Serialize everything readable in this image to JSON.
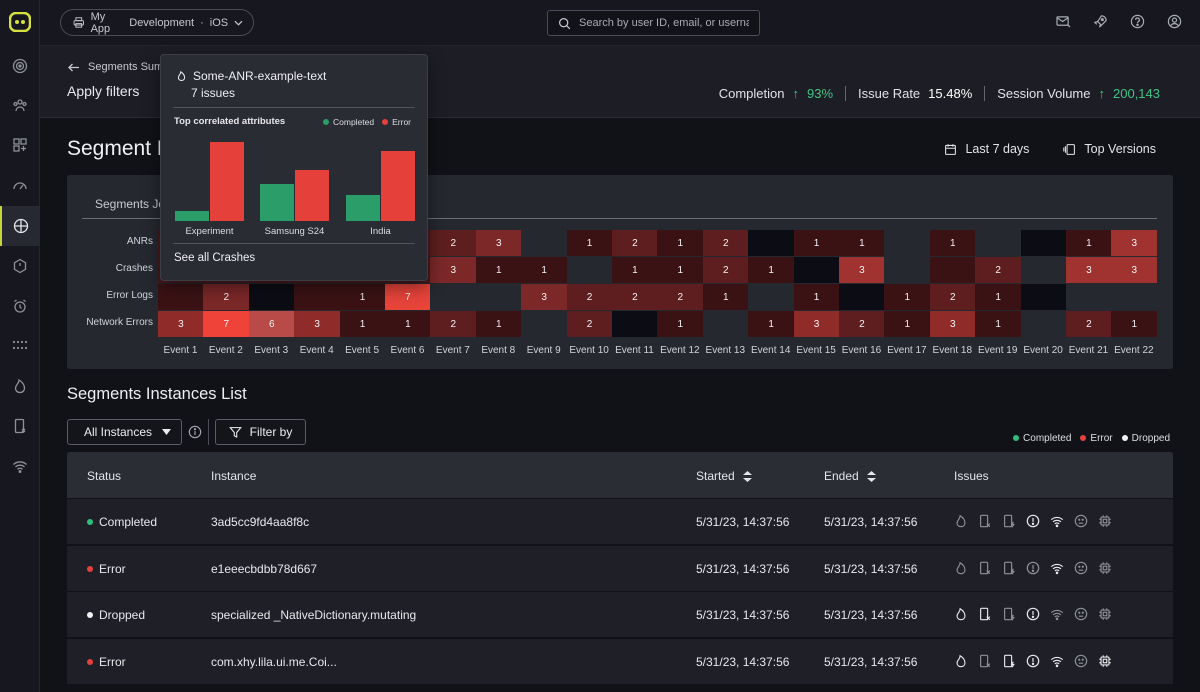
{
  "topbar": {
    "app_name": "My App",
    "environment": "Development",
    "platform": "iOS",
    "separator": "·",
    "search_placeholder": "Search by user ID, email, or username"
  },
  "subheader": {
    "back_label": "Segments Summ",
    "title": "Apply filters",
    "metrics": [
      {
        "label": "Completion",
        "arrow": "↑",
        "value": "93%"
      },
      {
        "label": "Issue Rate",
        "value": "15.48%"
      },
      {
        "label": "Session Volume",
        "arrow": "↑",
        "value": "200,143"
      }
    ]
  },
  "dashboard": {
    "title_visible": "Segment D",
    "date_range": "Last 7 days",
    "top_versions": "Top Versions",
    "tab_label": "Segments Jo"
  },
  "heatmap": {
    "rows": [
      "ANRs",
      "Crashes",
      "Error Logs",
      "Network Errors"
    ],
    "columns": [
      "Event 1",
      "Event 2",
      "Event 3",
      "Event 4",
      "Event 5",
      "Event 6",
      "Event 7",
      "Event 8",
      "Event 9",
      "Event 10",
      "Event 11",
      "Event 12",
      "Event 13",
      "Event 14",
      "Event 15",
      "Event 16",
      "Event 17",
      "Event 18",
      "Event 19",
      "Event 20",
      "Event 21",
      "Event 22"
    ],
    "values": [
      [
        null,
        null,
        null,
        null,
        null,
        null,
        2,
        3,
        null,
        1,
        2,
        1,
        2,
        null,
        1,
        1,
        null,
        1,
        null,
        null,
        1,
        3
      ],
      [
        null,
        null,
        null,
        null,
        null,
        null,
        3,
        1,
        1,
        null,
        1,
        1,
        2,
        1,
        null,
        3,
        null,
        null,
        2,
        null,
        3,
        3
      ],
      [
        null,
        2,
        null,
        null,
        1,
        7,
        null,
        null,
        3,
        2,
        2,
        2,
        1,
        null,
        1,
        null,
        1,
        2,
        1,
        null,
        null,
        null
      ],
      [
        3,
        7,
        6,
        3,
        1,
        1,
        2,
        1,
        null,
        2,
        null,
        1,
        null,
        1,
        3,
        2,
        1,
        3,
        1,
        null,
        2,
        1
      ]
    ],
    "cell_colors": [
      [
        "#4a1a1c",
        "#4a1a1c",
        "#4a1a1c",
        "#4a1a1c",
        "#4a1a1c",
        "#4a1a1c",
        "#5e1e1f",
        "#7c2828",
        "#262830",
        "#3b1214",
        "#5e1e1f",
        "#3b1214",
        "#5e1e1f",
        "#0c0d14",
        "#3b1214",
        "#3b1214",
        "#262830",
        "#3b1214",
        "#262830",
        "#0c0d14",
        "#3b1214",
        "#a0332f"
      ],
      [
        "#4a1a1c",
        "#4a1a1c",
        "#4a1a1c",
        "#4a1a1c",
        "#4a1a1c",
        "#4a1a1c",
        "#7c2828",
        "#3b1214",
        "#3b1214",
        "#262830",
        "#3b1214",
        "#3b1214",
        "#5e1e1f",
        "#3b1214",
        "#0c0d14",
        "#a0332f",
        "#262830",
        "#3b1214",
        "#5e1e1f",
        "#262830",
        "#a0332f",
        "#a0332f"
      ],
      [
        "#3b1214",
        "#7c2828",
        "#0c0d14",
        "#3b1214",
        "#3b1214",
        "#e8443a",
        "#262830",
        "#262830",
        "#7c2828",
        "#5e1e1f",
        "#5e1e1f",
        "#5e1e1f",
        "#3b1214",
        "#262830",
        "#3b1214",
        "#0c0d14",
        "#3b1214",
        "#5e1e1f",
        "#3b1214",
        "#0c0d14",
        "#262830",
        "#262830"
      ],
      [
        "#8f2c2a",
        "#ef4238",
        "#b84a47",
        "#8f2c2a",
        "#3b1214",
        "#3b1214",
        "#5e1e1f",
        "#3b1214",
        "#262830",
        "#5e1e1f",
        "#0c0d14",
        "#3b1214",
        "#262830",
        "#3b1214",
        "#8f2c2a",
        "#5e1e1f",
        "#3b1214",
        "#8f2c2a",
        "#3b1214",
        "#262830",
        "#5e1e1f",
        "#3b1214"
      ]
    ]
  },
  "tooltip": {
    "title": "Some-ANR-example-text",
    "subtitle": "7 issues",
    "section": "Top correlated attributes",
    "legend_completed": "Completed",
    "legend_error": "Error",
    "link": "See all Crashes",
    "colors": {
      "completed": "#2a9d68",
      "error": "#e5413a"
    }
  },
  "chart_data": {
    "type": "bar",
    "categories": [
      "Experiment",
      "Samsung S24",
      "India"
    ],
    "series": [
      {
        "name": "Completed",
        "values": [
          10,
          37,
          26
        ]
      },
      {
        "name": "Error",
        "values": [
          79,
          51,
          70
        ]
      }
    ],
    "ylim": [
      0,
      80
    ]
  },
  "instances": {
    "title": "Segments Instances List",
    "filter_select": "All Instances",
    "filter_button": "Filter by",
    "legend": [
      {
        "label": "Completed",
        "color": "#2fbf7b"
      },
      {
        "label": "Error",
        "color": "#e5413a"
      },
      {
        "label": "Dropped",
        "color": "#f2f2f4"
      }
    ],
    "headers": {
      "status": "Status",
      "instance": "Instance",
      "started": "Started",
      "ended": "Ended",
      "issues": "Issues"
    },
    "rows": [
      {
        "status": "Completed",
        "status_color": "#2fbf7b",
        "instance": "3ad5cc9fd4aa8f8c",
        "started": "5/31/23, 14:37:56",
        "ended": "5/31/23, 14:37:56",
        "active_issues": [
          3,
          4
        ]
      },
      {
        "status": "Error",
        "status_color": "#e5413a",
        "instance": "e1eeecbdbb78d667",
        "started": "5/31/23, 14:37:56",
        "ended": "5/31/23, 14:37:56",
        "active_issues": [
          4
        ]
      },
      {
        "status": "Dropped",
        "status_color": "#f2f2f4",
        "instance": "specialized _NativeDictionary.mutating",
        "started": "5/31/23, 14:37:56",
        "ended": "5/31/23, 14:37:56",
        "active_issues": [
          0,
          1,
          3
        ]
      },
      {
        "status": "Error",
        "status_color": "#e5413a",
        "instance": "com.xhy.lila.ui.me.Coi...",
        "started": "5/31/23, 14:37:56",
        "ended": "5/31/23, 14:37:56",
        "active_issues": [
          0,
          2,
          3,
          4,
          6
        ]
      }
    ],
    "issue_icons": [
      "flame-icon",
      "device-x-icon",
      "device-bolt-icon",
      "alert-circle-icon",
      "wifi-icon",
      "face-icon",
      "cpu-icon"
    ]
  }
}
